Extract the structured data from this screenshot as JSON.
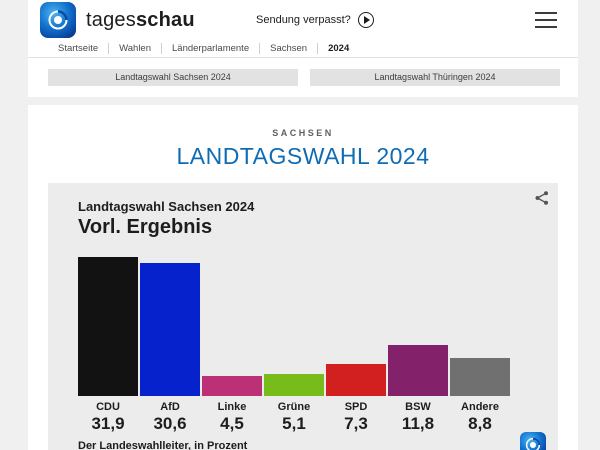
{
  "header": {
    "brand_prefix": "tages",
    "brand_suffix": "schau",
    "sendung_verpasst": "Sendung verpasst?",
    "breadcrumb": [
      "Startseite",
      "Wahlen",
      "Länderparlamente",
      "Sachsen",
      "2024"
    ]
  },
  "subnav": {
    "tabs": [
      "Landtagswahl Sachsen 2024",
      "Landtagswahl Thüringen 2024"
    ]
  },
  "page": {
    "kicker": "SACHSEN",
    "title": "LANDTAGSWAHL 2024"
  },
  "chart_data": {
    "type": "bar",
    "title": "Landtagswahl Sachsen 2024",
    "subtitle": "Vorl. Ergebnis",
    "categories": [
      "CDU",
      "AfD",
      "Linke",
      "Grüne",
      "SPD",
      "BSW",
      "Andere"
    ],
    "values": [
      31.9,
      30.6,
      4.5,
      5.1,
      7.3,
      11.8,
      8.8
    ],
    "value_labels": [
      "31,9",
      "30,6",
      "4,5",
      "5,1",
      "7,3",
      "11,8",
      "8,8"
    ],
    "colors": [
      "#121212",
      "#0522cc",
      "#bc3075",
      "#78bc1b",
      "#d22020",
      "#83216b",
      "#707070"
    ],
    "source": "Der Landeswahlleiter, in Prozent",
    "unit": "Prozent",
    "ylim": [
      0,
      32
    ],
    "grid": false,
    "legend": "none"
  },
  "icons": {
    "play_icon": "circle-play",
    "menu_icon": "hamburger",
    "share_icon": "share-nodes",
    "brand_logo": "tagesschau-globe"
  },
  "colors": {
    "accent_blue": "#0e6cb5",
    "page_bg": "#f0f0f0",
    "panel_bg": "#ececec"
  }
}
